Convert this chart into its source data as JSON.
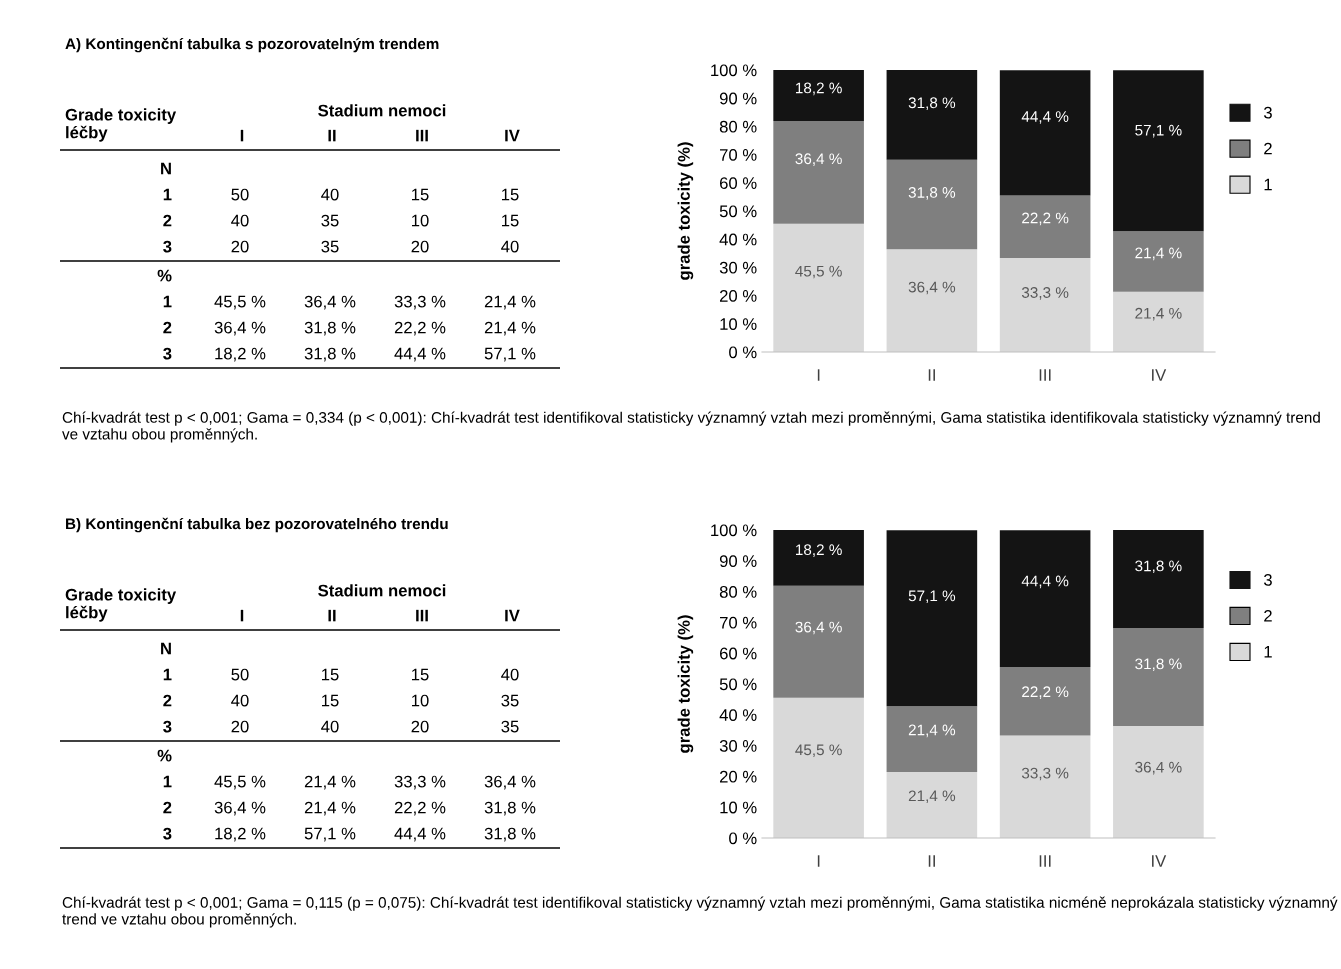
{
  "chart_data": [
    {
      "type": "other",
      "title": "A) Kontingenční tabulka s pozorovatelným trendem",
      "ylabel": "Grade toxicity\nléčby",
      "xlabel": "Stadium nemoci",
      "categories": [
        "I",
        "II",
        "III",
        "IV"
      ],
      "y_categories": [
        "N",
        "1",
        "2",
        "3",
        "%",
        "1",
        "2",
        "3"
      ],
      "cell_labels": [
        null,
        [
          "50",
          "40",
          "15",
          "15"
        ],
        [
          "40",
          "35",
          "10",
          "15"
        ],
        [
          "20",
          "35",
          "20",
          "40"
        ],
        null,
        [
          "45,5 %",
          "36,4 %",
          "33,3 %",
          "21,4 %"
        ],
        [
          "36,4 %",
          "31,8 %",
          "22,2 %",
          "21,4 %"
        ],
        [
          "18,2 %",
          "31,8 %",
          "44,4 %",
          "57,1 %"
        ]
      ]
    },
    {
      "type": "bar",
      "stacked": true,
      "ylabel": "grade toxicity (%)",
      "categories": [
        "I",
        "II",
        "III",
        "IV"
      ],
      "ylim": [
        0,
        100
      ],
      "yticks": [
        {
          "value": 0,
          "label": "0 %"
        },
        {
          "value": 10,
          "label": "10 %"
        },
        {
          "value": 20,
          "label": "20 %"
        },
        {
          "value": 30,
          "label": "30 %"
        },
        {
          "value": 40,
          "label": "40 %"
        },
        {
          "value": 50,
          "label": "50 %"
        },
        {
          "value": 60,
          "label": "60 %"
        },
        {
          "value": 70,
          "label": "70 %"
        },
        {
          "value": 80,
          "label": "80 %"
        },
        {
          "value": 90,
          "label": "90 %"
        },
        {
          "value": 100,
          "label": "100 %"
        }
      ],
      "legend": "right",
      "grid": false,
      "series": [
        {
          "name": "1",
          "color": "#d9d9d9",
          "values": [
            45.5,
            36.4,
            33.3,
            21.4
          ],
          "value_labels": [
            "45,5 %",
            "36,4 %",
            "33,3 %",
            "21,4 %"
          ]
        },
        {
          "name": "2",
          "color": "#7f7f7f",
          "values": [
            36.4,
            31.8,
            22.2,
            21.4
          ],
          "value_labels": [
            "36,4 %",
            "31,8 %",
            "22,2 %",
            "21,4 %"
          ]
        },
        {
          "name": "3",
          "color": "#141414",
          "values": [
            18.2,
            31.8,
            44.4,
            57.1
          ],
          "value_labels": [
            "18,2 %",
            "31,8 %",
            "44,4 %",
            "57,1 %"
          ]
        }
      ],
      "annotations": [
        "Chí-kvadrát test p < 0,001; Gama = 0,334 (p < 0,001): Chí-kvadrát test identifikoval statisticky významný vztah mezi proměnnými, Gama statistika identifikovala statisticky významný trend ve vztahu obou proměnných."
      ]
    },
    {
      "type": "other",
      "title": "B) Kontingenční tabulka bez pozorovatelného trendu",
      "ylabel": "Grade toxicity\nléčby",
      "xlabel": "Stadium nemoci",
      "categories": [
        "I",
        "II",
        "III",
        "IV"
      ],
      "y_categories": [
        "N",
        "1",
        "2",
        "3",
        "%",
        "1",
        "2",
        "3"
      ],
      "cell_labels": [
        null,
        [
          "50",
          "15",
          "15",
          "40"
        ],
        [
          "40",
          "15",
          "10",
          "35"
        ],
        [
          "20",
          "40",
          "20",
          "35"
        ],
        null,
        [
          "45,5 %",
          "21,4 %",
          "33,3 %",
          "36,4 %"
        ],
        [
          "36,4 %",
          "21,4 %",
          "22,2 %",
          "31,8 %"
        ],
        [
          "18,2 %",
          "57,1 %",
          "44,4 %",
          "31,8 %"
        ]
      ]
    },
    {
      "type": "bar",
      "stacked": true,
      "ylabel": "grade toxicity (%)",
      "categories": [
        "I",
        "II",
        "III",
        "IV"
      ],
      "ylim": [
        0,
        100
      ],
      "yticks": [
        {
          "value": 0,
          "label": "0 %"
        },
        {
          "value": 10,
          "label": "10 %"
        },
        {
          "value": 20,
          "label": "20 %"
        },
        {
          "value": 30,
          "label": "30 %"
        },
        {
          "value": 40,
          "label": "40 %"
        },
        {
          "value": 50,
          "label": "50 %"
        },
        {
          "value": 60,
          "label": "60 %"
        },
        {
          "value": 70,
          "label": "70 %"
        },
        {
          "value": 80,
          "label": "80 %"
        },
        {
          "value": 90,
          "label": "90 %"
        },
        {
          "value": 100,
          "label": "100 %"
        }
      ],
      "legend": "right",
      "grid": false,
      "series": [
        {
          "name": "1",
          "color": "#d9d9d9",
          "values": [
            45.5,
            21.4,
            33.3,
            36.4
          ],
          "value_labels": [
            "45,5 %",
            "21,4 %",
            "33,3 %",
            "36,4 %"
          ]
        },
        {
          "name": "2",
          "color": "#7f7f7f",
          "values": [
            36.4,
            21.4,
            22.2,
            31.8
          ],
          "value_labels": [
            "36,4 %",
            "21,4 %",
            "22,2 %",
            "31,8 %"
          ]
        },
        {
          "name": "3",
          "color": "#141414",
          "values": [
            18.2,
            57.1,
            44.4,
            31.8
          ],
          "value_labels": [
            "18,2 %",
            "57,1 %",
            "44,4 %",
            "31,8 %"
          ]
        }
      ],
      "annotations": [
        "Chí-kvadrát test p < 0,001; Gama = 0,115 (p = 0,075): Chí-kvadrát test identifikoval statisticky významný vztah mezi proměnnými, Gama statistika nicméně neprokázala statisticky významný trend ve vztahu obou proměnných."
      ]
    }
  ]
}
